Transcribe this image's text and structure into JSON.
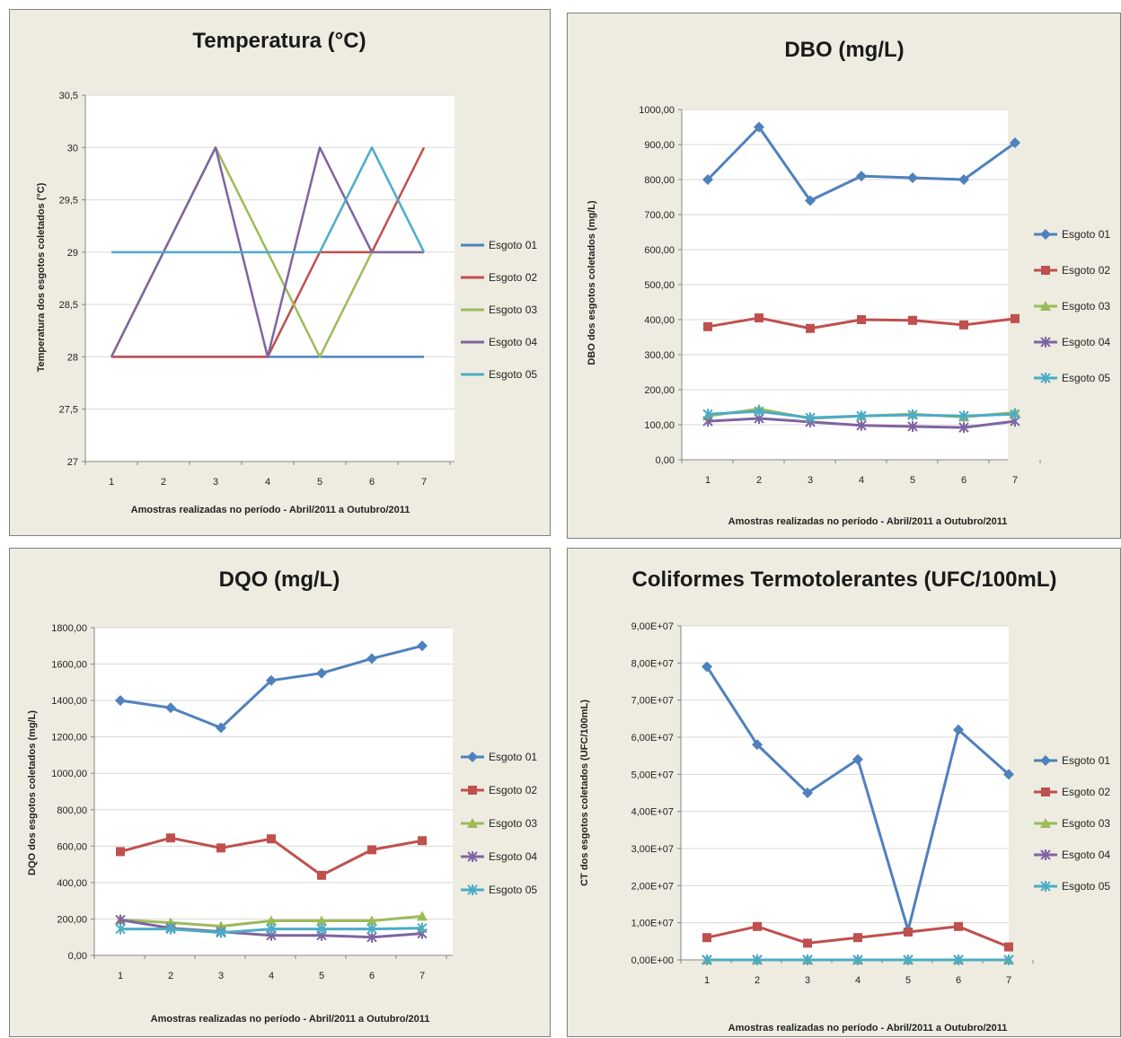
{
  "colors": {
    "panel_bg": "#eeece1",
    "plot_bg": "#ffffff",
    "grid": "#d9d9d9",
    "axis": "#868686",
    "series": [
      "#4f81bd",
      "#c0504d",
      "#9bbb59",
      "#8064a2",
      "#4bacc6"
    ]
  },
  "chart_data": [
    {
      "type": "line",
      "title": "Temperatura (°C)",
      "xlabel": "Amostras realizadas no período - Abril/2011 a Outubro/2011",
      "ylabel": "Temperatura dos esgotos coletados (°C)",
      "x": [
        1,
        2,
        3,
        4,
        5,
        6,
        7
      ],
      "ylim": [
        27,
        30.5
      ],
      "yticks": [
        27,
        27.5,
        28,
        28.5,
        29,
        29.5,
        30,
        30.5
      ],
      "ytick_labels": [
        "27",
        "27,5",
        "28",
        "28,5",
        "29",
        "29,5",
        "30",
        "30,5"
      ],
      "markers": false,
      "grid": true,
      "legend_position": "right",
      "series": [
        {
          "name": "Esgoto 01",
          "values": [
            28,
            28,
            28,
            28,
            28,
            28,
            28
          ]
        },
        {
          "name": "Esgoto 02",
          "values": [
            28,
            28,
            28,
            28,
            29,
            29,
            30
          ]
        },
        {
          "name": "Esgoto 03",
          "values": [
            28,
            29,
            30,
            29,
            28,
            29,
            29
          ]
        },
        {
          "name": "Esgoto 04",
          "values": [
            28,
            29,
            30,
            28,
            30,
            29,
            29
          ]
        },
        {
          "name": "Esgoto 05",
          "values": [
            29,
            29,
            29,
            29,
            29,
            30,
            29
          ]
        }
      ]
    },
    {
      "type": "line",
      "title": "DBO (mg/L)",
      "xlabel": "Amostras realizadas no período - Abril/2011 a Outubro/2011",
      "ylabel": "DBO dos esgotos coletados (mg/L)",
      "x": [
        1,
        2,
        3,
        4,
        5,
        6,
        7
      ],
      "ylim": [
        0,
        1000
      ],
      "yticks": [
        0,
        100,
        200,
        300,
        400,
        500,
        600,
        700,
        800,
        900,
        1000
      ],
      "ytick_labels": [
        "0,00",
        "100,00",
        "200,00",
        "300,00",
        "400,00",
        "500,00",
        "600,00",
        "700,00",
        "800,00",
        "900,00",
        "1000,00"
      ],
      "markers": true,
      "grid": true,
      "legend_position": "right",
      "series": [
        {
          "name": "Esgoto 01",
          "values": [
            800,
            950,
            740,
            810,
            805,
            800,
            905
          ]
        },
        {
          "name": "Esgoto 02",
          "values": [
            380,
            405,
            375,
            400,
            398,
            385,
            403
          ]
        },
        {
          "name": "Esgoto 03",
          "values": [
            125,
            145,
            118,
            125,
            130,
            122,
            135
          ]
        },
        {
          "name": "Esgoto 04",
          "values": [
            110,
            118,
            108,
            98,
            95,
            92,
            110
          ]
        },
        {
          "name": "Esgoto 05",
          "values": [
            130,
            138,
            120,
            125,
            128,
            125,
            130
          ]
        }
      ]
    },
    {
      "type": "line",
      "title": "DQO (mg/L)",
      "xlabel": "Amostras realizadas no período - Abril/2011 a Outubro/2011",
      "ylabel": "DQO dos esgotos coletados (mg/L)",
      "x": [
        1,
        2,
        3,
        4,
        5,
        6,
        7
      ],
      "ylim": [
        0,
        1800
      ],
      "yticks": [
        0,
        200,
        400,
        600,
        800,
        1000,
        1200,
        1400,
        1600,
        1800
      ],
      "ytick_labels": [
        "0,00",
        "200,00",
        "400,00",
        "600,00",
        "800,00",
        "1000,00",
        "1200,00",
        "1400,00",
        "1600,00",
        "1800,00"
      ],
      "markers": true,
      "grid": true,
      "legend_position": "right",
      "series": [
        {
          "name": "Esgoto 01",
          "values": [
            1400,
            1360,
            1250,
            1510,
            1550,
            1630,
            1700
          ]
        },
        {
          "name": "Esgoto 02",
          "values": [
            570,
            645,
            590,
            640,
            440,
            580,
            630
          ]
        },
        {
          "name": "Esgoto 03",
          "values": [
            195,
            180,
            160,
            190,
            190,
            190,
            215
          ]
        },
        {
          "name": "Esgoto 04",
          "values": [
            195,
            150,
            130,
            110,
            110,
            100,
            120
          ]
        },
        {
          "name": "Esgoto 05",
          "values": [
            145,
            145,
            125,
            145,
            145,
            145,
            150
          ]
        }
      ]
    },
    {
      "type": "line",
      "title": "Coliformes Termotolerantes (UFC/100mL)",
      "xlabel": "Amostras realizadas no período - Abril/2011 a Outubro/2011",
      "ylabel": "CT dos esgotos coletados (UFC/100mL)",
      "x": [
        1,
        2,
        3,
        4,
        5,
        6,
        7
      ],
      "ylim": [
        0,
        90000000
      ],
      "yticks": [
        0,
        10000000,
        20000000,
        30000000,
        40000000,
        50000000,
        60000000,
        70000000,
        80000000,
        90000000
      ],
      "ytick_labels": [
        "0,00E+00",
        "1,00E+07",
        "2,00E+07",
        "3,00E+07",
        "4,00E+07",
        "5,00E+07",
        "6,00E+07",
        "7,00E+07",
        "8,00E+07",
        "9,00E+07"
      ],
      "markers": true,
      "grid": true,
      "legend_position": "right",
      "series": [
        {
          "name": "Esgoto 01",
          "values": [
            79000000,
            58000000,
            45000000,
            54000000,
            8000000,
            62000000,
            50000000
          ]
        },
        {
          "name": "Esgoto 02",
          "values": [
            6000000,
            9000000,
            4500000,
            6000000,
            7500000,
            9000000,
            3500000
          ]
        },
        {
          "name": "Esgoto 03",
          "values": [
            0,
            0,
            0,
            0,
            0,
            0,
            0
          ]
        },
        {
          "name": "Esgoto 04",
          "values": [
            0,
            0,
            0,
            0,
            0,
            0,
            0
          ]
        },
        {
          "name": "Esgoto 05",
          "values": [
            0,
            0,
            0,
            0,
            0,
            0,
            0
          ]
        }
      ]
    }
  ]
}
